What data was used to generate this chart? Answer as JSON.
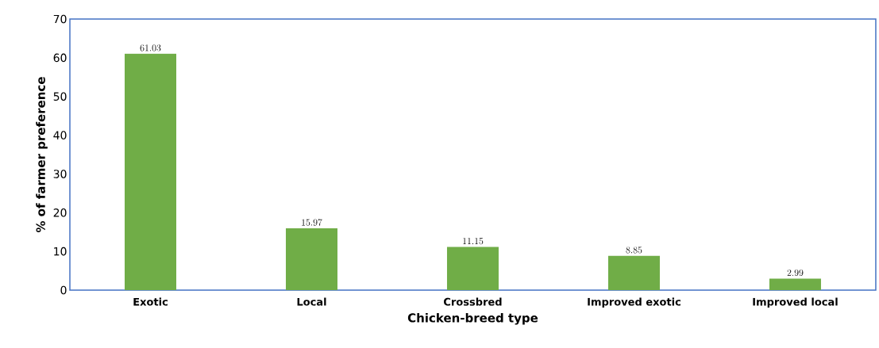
{
  "chart_data": {
    "type": "bar",
    "categories": [
      "Exotic",
      "Local",
      "Crossbred",
      "Improved exotic",
      "Improved local"
    ],
    "values": [
      61.03,
      15.97,
      11.15,
      8.85,
      2.99
    ],
    "color": "#70ad47",
    "xlabel": "Chicken-breed type",
    "ylabel": "%  of farmer preference",
    "ylim": [
      0,
      70
    ],
    "yticks": [
      0,
      10,
      20,
      30,
      40,
      50,
      60,
      70
    ],
    "data_labels": true
  }
}
